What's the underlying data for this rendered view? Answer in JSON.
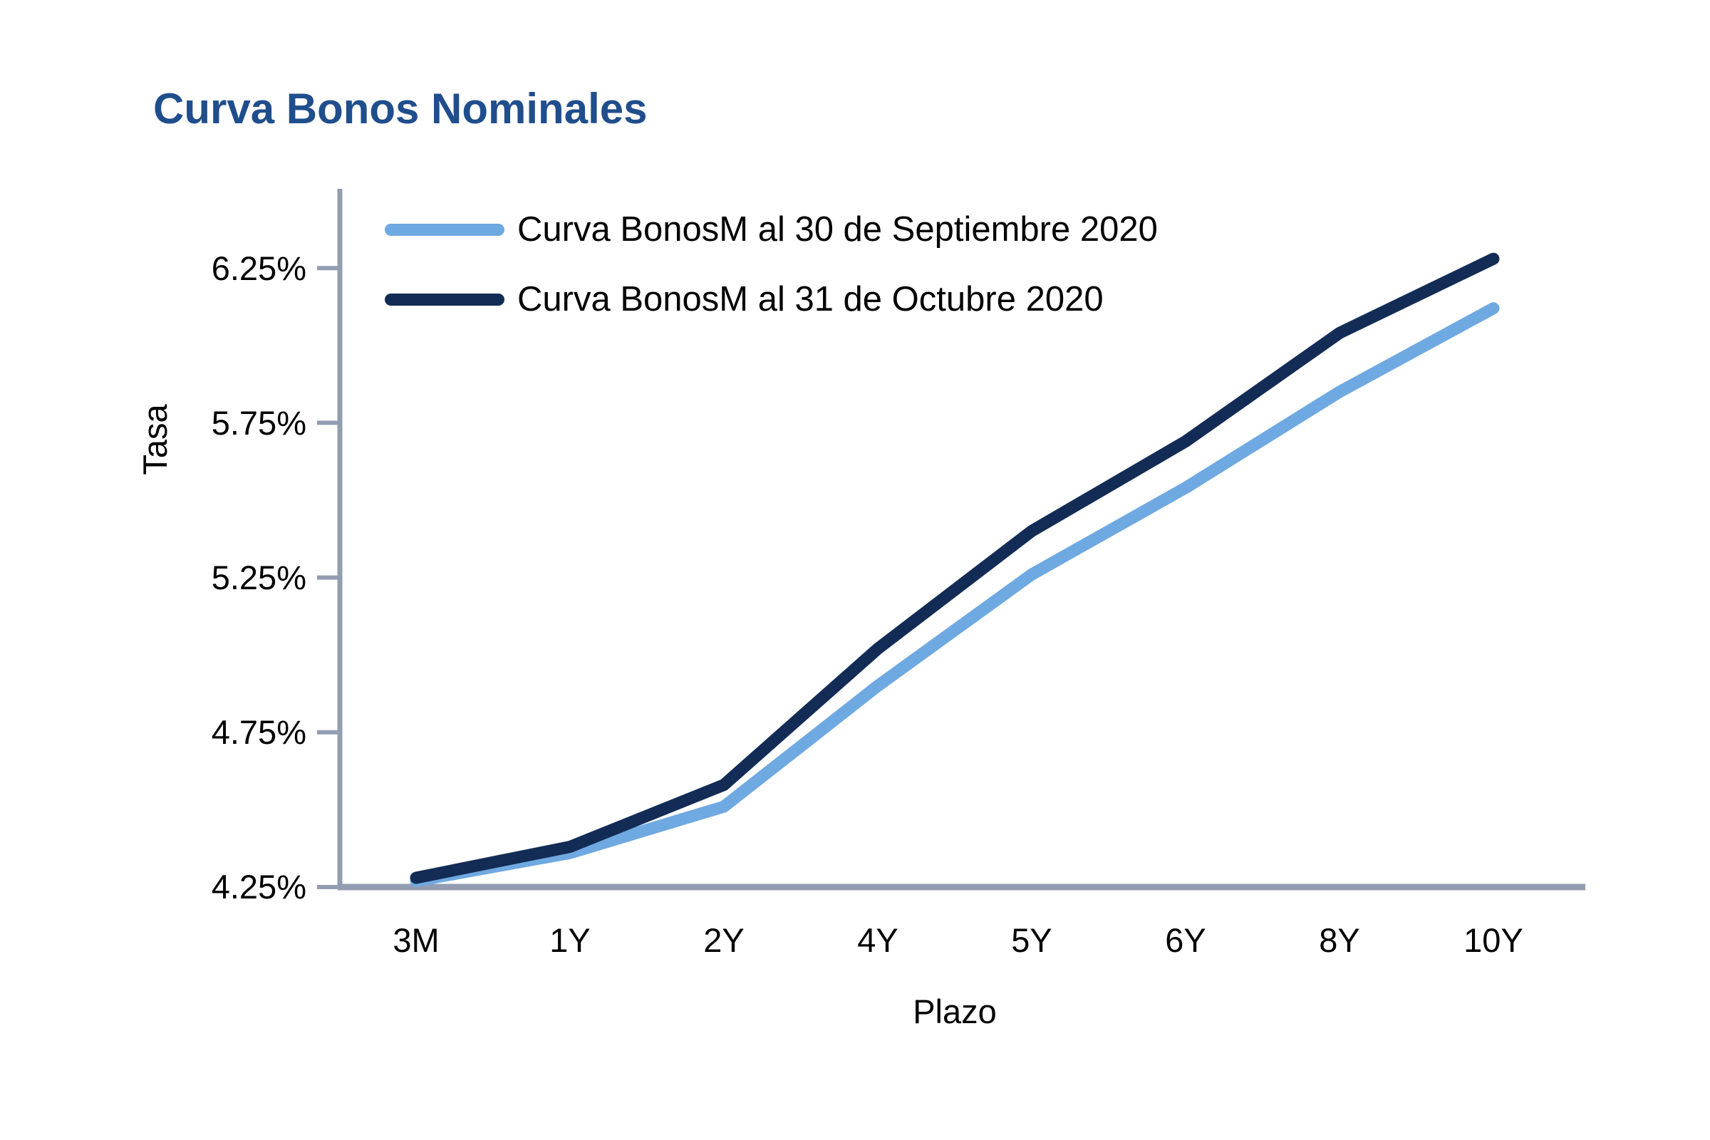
{
  "title": "Curva Bonos Nominales",
  "colors": {
    "title": "#204E8C",
    "axis": "#939DB2",
    "text": "#000000",
    "series_septiembre": "#6FA9E1",
    "series_octubre": "#132C56"
  },
  "chart_data": {
    "type": "line",
    "title": "Curva Bonos Nominales",
    "categories": [
      "3M",
      "1Y",
      "2Y",
      "4Y",
      "5Y",
      "6Y",
      "8Y",
      "10Y"
    ],
    "series": [
      {
        "name": "Curva BonosM al 30 de Septiembre 2020",
        "color": "#6FA9E1",
        "values": [
          4.27,
          4.36,
          4.51,
          4.9,
          5.26,
          5.54,
          5.85,
          6.12
        ]
      },
      {
        "name": "Curva BonosM al 31 de Octubre 2020",
        "color": "#132C56",
        "values": [
          4.28,
          4.38,
          4.58,
          5.02,
          5.4,
          5.69,
          6.04,
          6.28
        ]
      }
    ],
    "xlabel": "Plazo",
    "ylabel": "Tasa",
    "y_ticks": [
      "6.25%",
      "5.75%",
      "5.25%",
      "4.75%",
      "4.25%"
    ],
    "y_tick_values": [
      6.25,
      5.75,
      5.25,
      4.75,
      4.25
    ],
    "ylim": [
      4.25,
      6.55
    ],
    "grid": false,
    "legend_position": "top-left-inside"
  }
}
